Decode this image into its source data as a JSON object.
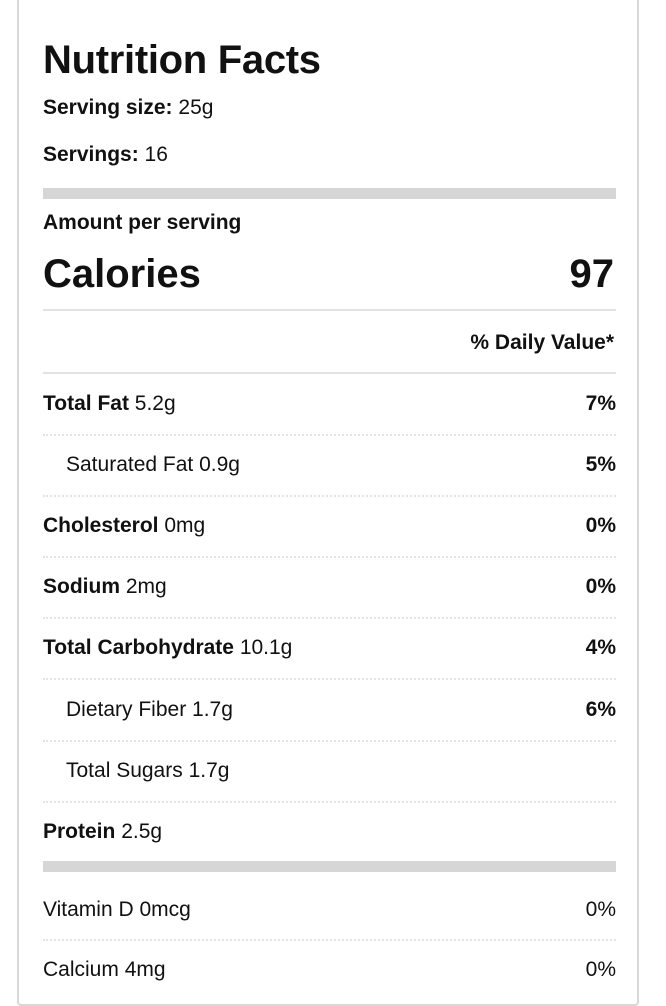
{
  "title": "Nutrition Facts",
  "serving_size": {
    "label": "Serving size:",
    "value": "25g"
  },
  "servings": {
    "label": "Servings:",
    "value": "16"
  },
  "amount_per_serving": "Amount per serving",
  "calories": {
    "label": "Calories",
    "value": "97"
  },
  "daily_value_header": "% Daily Value*",
  "nutrients": [
    {
      "name": "Total Fat",
      "amount": "5.2g",
      "dv": "7%"
    },
    {
      "name": "Saturated Fat",
      "amount": "0.9g",
      "dv": "5%"
    },
    {
      "name": "Cholesterol",
      "amount": "0mg",
      "dv": "0%"
    },
    {
      "name": "Sodium",
      "amount": "2mg",
      "dv": "0%"
    },
    {
      "name": "Total Carbohydrate",
      "amount": "10.1g",
      "dv": "4%"
    },
    {
      "name": "Dietary Fiber",
      "amount": "1.7g",
      "dv": "6%"
    },
    {
      "name": "Total Sugars",
      "amount": "1.7g",
      "dv": ""
    },
    {
      "name": "Protein",
      "amount": "2.5g",
      "dv": ""
    }
  ],
  "vitamins": [
    {
      "name": "Vitamin D",
      "amount": "0mcg",
      "dv": "0%"
    },
    {
      "name": "Calcium",
      "amount": "4mg",
      "dv": "0%"
    }
  ]
}
